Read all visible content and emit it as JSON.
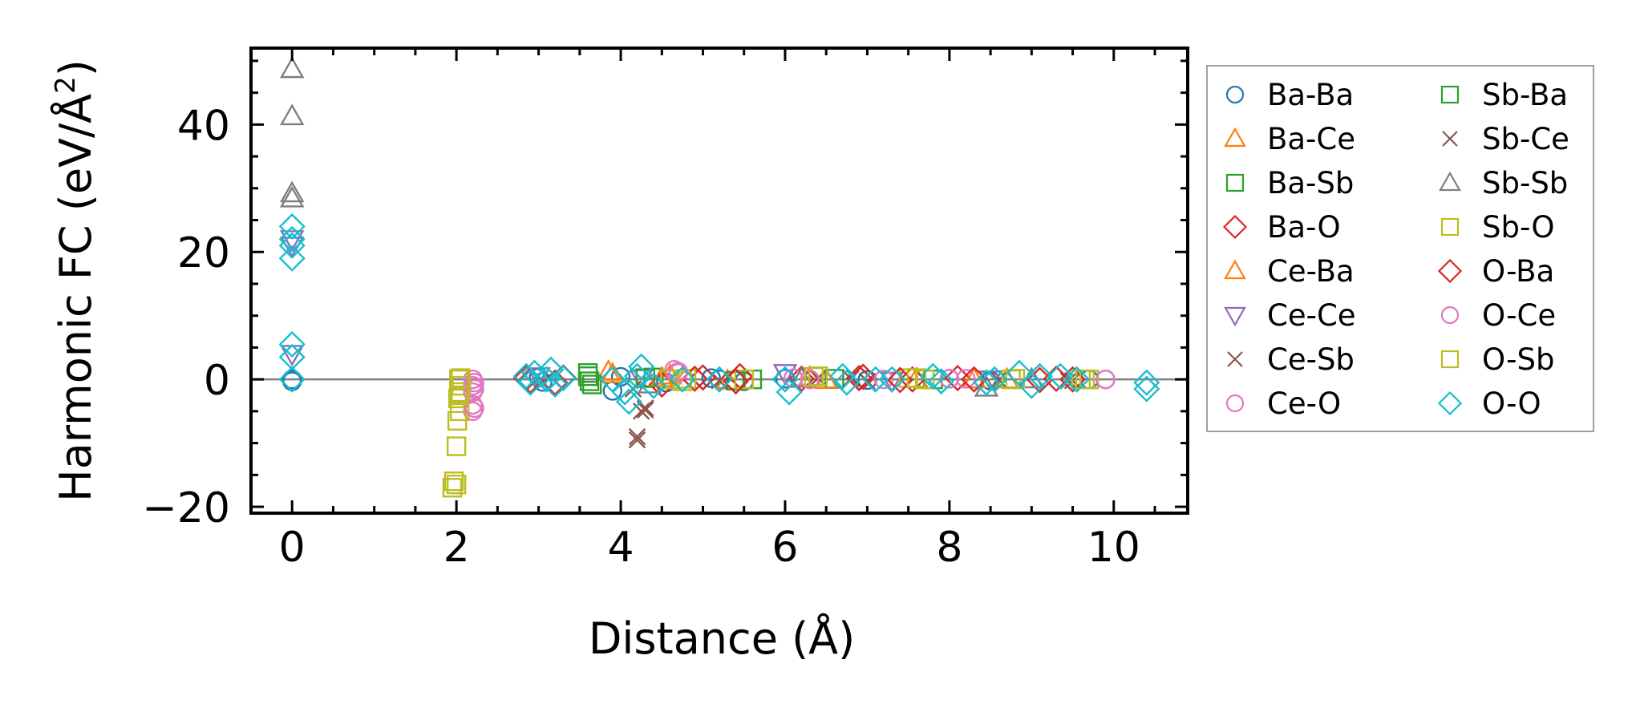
{
  "chart_data": {
    "type": "scatter",
    "title": "",
    "xlabel": "Distance (Å)",
    "ylabel": "Harmonic FC (eV/Å²)",
    "ylabel_main": "Harmonic FC (eV/Å",
    "ylabel_sup": "2",
    "ylabel_end": ")",
    "xlim": [
      -0.5,
      10.9
    ],
    "ylim": [
      -21,
      52
    ],
    "xticks": [
      0,
      2,
      4,
      6,
      8,
      10
    ],
    "yticks": [
      -20,
      0,
      20,
      40
    ],
    "xtick_labels": [
      "0",
      "2",
      "4",
      "6",
      "8",
      "10"
    ],
    "ytick_labels": [
      "−20",
      "0",
      "20",
      "40"
    ],
    "zero_line": 0,
    "legend_position": "outside-right",
    "series": [
      {
        "name": "Ba-Ba",
        "marker": "circle",
        "color": "#1f77b4",
        "x": [
          0,
          0,
          3.0,
          3.05,
          3.9,
          4.0,
          4.55,
          5.1,
          5.2,
          5.5,
          6.0,
          7.0,
          8.0,
          8.5,
          9.7
        ],
        "y": [
          0,
          -0.3,
          0.3,
          -0.4,
          -1.8,
          0.4,
          -0.5,
          0.2,
          0.0,
          -0.3,
          0.1,
          -0.1,
          0.1,
          -0.2,
          0.0
        ]
      },
      {
        "name": "Ba-Ce",
        "marker": "triangle",
        "color": "#ff7f0e",
        "x": [
          3.85,
          4.6,
          5.3,
          6.3,
          7.6,
          8.7
        ],
        "y": [
          1.2,
          0.6,
          -0.2,
          0.3,
          0.1,
          0.0
        ]
      },
      {
        "name": "Ba-Sb",
        "marker": "square",
        "color": "#2ca02c",
        "x": [
          3.6,
          3.65,
          4.4,
          5.4,
          6.6,
          7.8
        ],
        "y": [
          1.0,
          -0.8,
          0.3,
          -0.2,
          0.1,
          0.0
        ]
      },
      {
        "name": "Ba-O",
        "marker": "diamond",
        "color": "#d62728",
        "x": [
          2.85,
          3.2,
          4.5,
          5.0,
          5.45,
          6.2,
          6.95,
          7.55,
          8.1,
          9.1,
          9.5
        ],
        "y": [
          0.2,
          -0.5,
          -0.8,
          0.3,
          0.5,
          0.1,
          0.4,
          0.0,
          0.2,
          -0.1,
          0.0
        ]
      },
      {
        "name": "Ce-Ba",
        "marker": "triangle",
        "color": "#ff7f0e",
        "x": [
          3.9,
          4.5,
          6.5,
          8.3
        ],
        "y": [
          0.8,
          0.2,
          -0.1,
          0.0
        ]
      },
      {
        "name": "Ce-Ce",
        "marker": "triangle-down",
        "color": "#9467bd",
        "x": [
          0,
          0,
          0,
          3.0,
          4.25,
          6.0,
          7.3,
          8.5
        ],
        "y": [
          22.0,
          21.0,
          4.0,
          0.5,
          0.2,
          1.0,
          -0.2,
          0.0
        ]
      },
      {
        "name": "Ce-Sb",
        "marker": "x",
        "color": "#8c564b",
        "x": [
          4.2,
          4.25,
          4.3,
          4.15,
          5.2,
          6.8,
          8.6,
          9.45
        ],
        "y": [
          -9.5,
          -5.0,
          -4.5,
          -1.5,
          -0.2,
          0.1,
          -0.1,
          -0.2
        ]
      },
      {
        "name": "Ce-O",
        "marker": "circle",
        "color": "#e377c2",
        "x": [
          2.2,
          2.2,
          2.2,
          2.2,
          2.2,
          4.65,
          4.7,
          6.1,
          7.2,
          8.2,
          9.9
        ],
        "y": [
          0.0,
          -1.0,
          -2.0,
          -4.0,
          -5.0,
          1.5,
          1.0,
          0.2,
          0.0,
          0.1,
          0.0
        ]
      },
      {
        "name": "Sb-Ba",
        "marker": "square",
        "color": "#2ca02c",
        "x": [
          3.6,
          3.62,
          4.3,
          5.6
        ],
        "y": [
          0.5,
          -0.3,
          0.2,
          0.0
        ]
      },
      {
        "name": "Sb-Ce",
        "marker": "x",
        "color": "#8c564b",
        "x": [
          4.2,
          4.3,
          6.4,
          7.0,
          9.5
        ],
        "y": [
          -9.0,
          -4.8,
          0.2,
          -0.3,
          -0.2
        ]
      },
      {
        "name": "Sb-Sb",
        "marker": "triangle",
        "color": "#7f7f7f",
        "x": [
          0,
          0,
          0,
          0,
          4.35,
          6.2,
          8.45,
          9.0
        ],
        "y": [
          48.7,
          41.3,
          29.2,
          28.4,
          -0.8,
          0.1,
          -1.3,
          0.0
        ]
      },
      {
        "name": "Sb-O",
        "marker": "square",
        "color": "#bcbd22",
        "x": [
          1.95,
          1.97,
          2.0,
          2.02,
          2.05,
          2.04,
          2.01,
          2.03,
          2.06,
          4.6,
          4.8,
          5.5,
          6.4,
          7.5,
          7.7,
          8.8,
          9.6,
          9.7
        ],
        "y": [
          -17.0,
          -16.0,
          -10.5,
          -3.0,
          -2.0,
          -5.0,
          -6.5,
          0.0,
          -1.0,
          0.0,
          0.1,
          0.0,
          0.5,
          0.2,
          0.0,
          0.1,
          0.0,
          0.0
        ]
      },
      {
        "name": "O-Ba",
        "marker": "diamond",
        "color": "#d62728",
        "x": [
          2.9,
          3.3,
          4.9,
          5.4,
          6.9,
          7.4,
          8.3,
          9.3
        ],
        "y": [
          -0.2,
          0.3,
          0.1,
          -0.3,
          0.2,
          -0.1,
          0.0,
          0.1
        ]
      },
      {
        "name": "O-Ce",
        "marker": "circle",
        "color": "#e377c2",
        "x": [
          2.22,
          2.22,
          2.22,
          4.7,
          6.3,
          8.0,
          9.9
        ],
        "y": [
          -0.5,
          -1.5,
          -4.5,
          1.2,
          0.0,
          0.1,
          0.0
        ]
      },
      {
        "name": "O-Sb",
        "marker": "square",
        "color": "#bcbd22",
        "x": [
          2.0,
          2.03,
          2.05,
          4.75,
          6.35,
          7.6,
          8.75,
          9.65
        ],
        "y": [
          -16.5,
          -2.5,
          0.2,
          -0.3,
          0.4,
          0.2,
          0.0,
          0.0
        ]
      },
      {
        "name": "O-O",
        "marker": "diamond",
        "color": "#17becf",
        "x": [
          0,
          0,
          0,
          0,
          0,
          0,
          0,
          2.85,
          2.9,
          2.95,
          3.1,
          3.15,
          3.2,
          3.3,
          3.9,
          4.05,
          4.1,
          4.2,
          4.25,
          4.4,
          4.75,
          5.2,
          6.0,
          6.05,
          6.7,
          6.75,
          7.1,
          7.3,
          7.8,
          7.9,
          8.45,
          8.55,
          8.85,
          9.0,
          9.1,
          9.35,
          9.55,
          10.4,
          10.4
        ],
        "y": [
          24.0,
          22.0,
          21.0,
          19.0,
          5.5,
          3.5,
          0.0,
          0.5,
          -0.5,
          1.0,
          0.0,
          1.5,
          -0.8,
          0.2,
          0.0,
          -2.0,
          -3.5,
          0.5,
          2.0,
          -1.0,
          0.0,
          0.0,
          0.0,
          -2.0,
          0.5,
          -0.5,
          0.0,
          0.0,
          0.5,
          -0.3,
          -0.5,
          0.0,
          1.0,
          -1.0,
          0.5,
          0.5,
          0.0,
          -0.5,
          -1.5
        ]
      }
    ]
  }
}
